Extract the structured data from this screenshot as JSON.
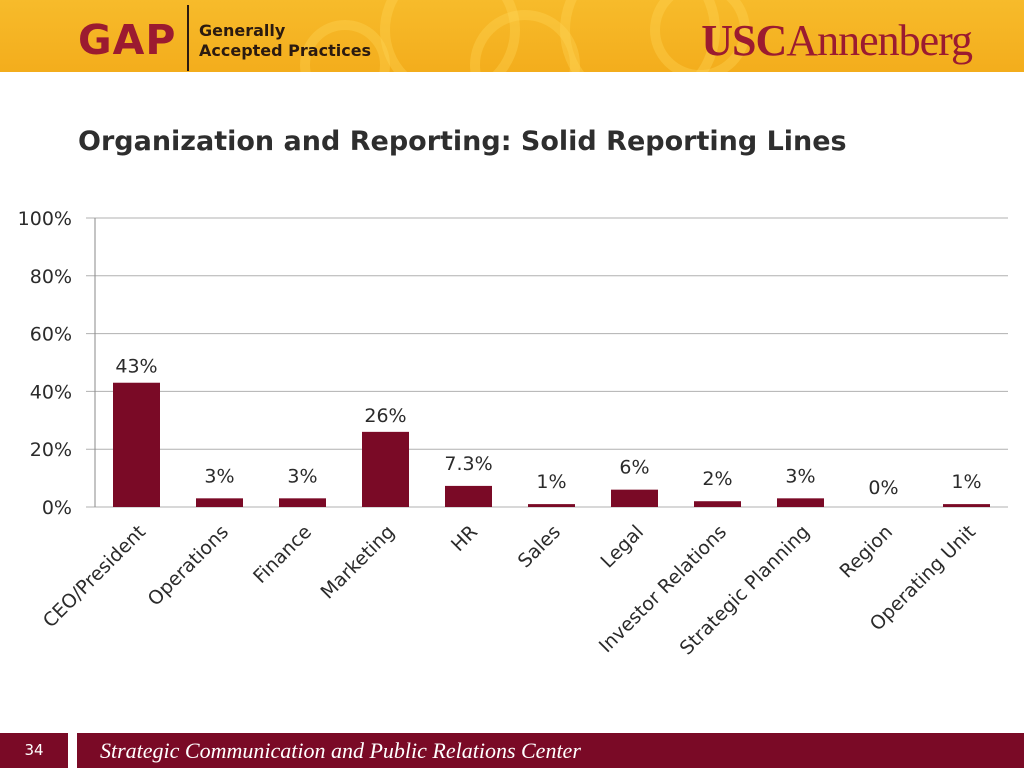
{
  "header": {
    "gap_logo": "GAP",
    "gap_text_line1": "Generally",
    "gap_text_line2": "Accepted Practices",
    "usc_logo_part1": "USC",
    "usc_logo_part2": "Annenberg",
    "accent_color": "#f5b324",
    "brand_color": "#9b1b30"
  },
  "slide": {
    "title": "Organization and Reporting: Solid Reporting Lines"
  },
  "chart_data": {
    "type": "bar",
    "categories": [
      "CEO/President",
      "Operations",
      "Finance",
      "Marketing",
      "HR",
      "Sales",
      "Legal",
      "Investor Relations",
      "Strategic Planning",
      "Region",
      "Operating Unit"
    ],
    "values": [
      43,
      3,
      3,
      26,
      7.3,
      1,
      6,
      2,
      3,
      0,
      1
    ],
    "data_labels": [
      "43%",
      "3%",
      "3%",
      "26%",
      "7.3%",
      "1%",
      "6%",
      "2%",
      "3%",
      "0%",
      "1%"
    ],
    "y_ticks": [
      0,
      20,
      40,
      60,
      80,
      100
    ],
    "y_tick_labels": [
      "0%",
      "20%",
      "40%",
      "60%",
      "80%",
      "100%"
    ],
    "ylim": [
      0,
      100
    ],
    "grid": true,
    "bar_color": "#7a0a26",
    "title": "",
    "xlabel": "",
    "ylabel": ""
  },
  "footer": {
    "page_number": "34",
    "text": "Strategic Communication and Public Relations Center",
    "color": "#7a0a26"
  }
}
